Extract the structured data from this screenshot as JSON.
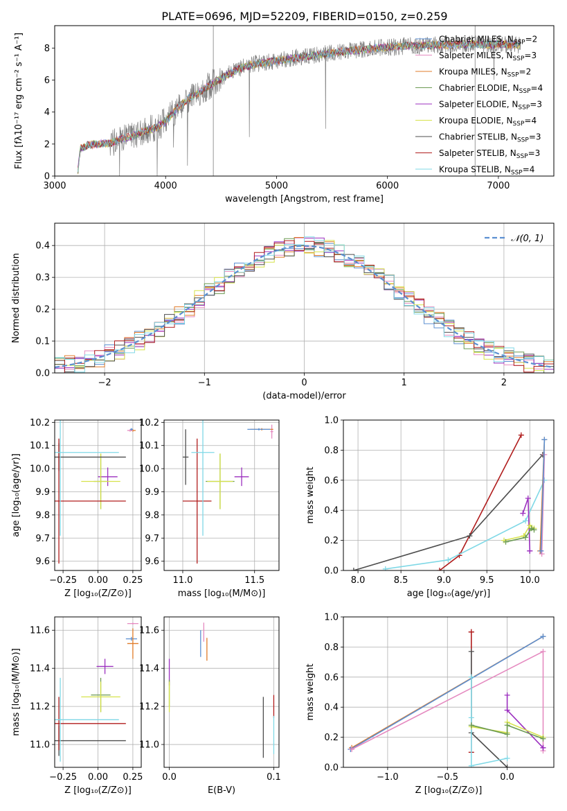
{
  "figure": {
    "title": "PLATE=0696, MJD=52209, FIBERID=0150, z=0.259"
  },
  "colors": {
    "chabrier_miles": "#5b8fd1",
    "salpeter_miles": "#e58ac0",
    "kroupa_miles": "#e07b28",
    "chabrier_elodie": "#6b9a52",
    "salpeter_elodie": "#9b2fbf",
    "kroupa_elodie": "#d6e24a",
    "chabrier_stelib": "#4d4d4d",
    "salpeter_stelib": "#b01c1c",
    "kroupa_stelib": "#7fd8e6",
    "data_spectrum": "#7f7f7f",
    "normal_curve": "#5b8fd1"
  },
  "chart_data": [
    {
      "id": "spectrum",
      "type": "line",
      "xlabel": "wavelength [Angstrom, rest frame]",
      "ylabel": "Flux [fλ10⁻¹⁷ erg cm⁻² s⁻¹ A⁻¹]",
      "xlim": [
        3000,
        7500
      ],
      "ylim": [
        0,
        9.4
      ],
      "xticks": [
        "3000",
        "4000",
        "5000",
        "6000",
        "7000"
      ],
      "yticks": [
        "0",
        "2",
        "4",
        "6",
        "8"
      ],
      "legend_position": "right",
      "legend": [
        "Chabrier MILES, N_SSP=2",
        "Salpeter MILES, N_SSP=3",
        "Kroupa MILES, N_SSP=2",
        "Chabrier ELODIE, N_SSP=4",
        "Salpeter ELODIE, N_SSP=3",
        "Kroupa ELODIE, N_SSP=4",
        "Chabrier STELIB, N_SSP=3",
        "Salpeter STELIB, N_SSP=3",
        "Kroupa STELIB, N_SSP=4"
      ],
      "legend_sub": "SSP",
      "model_curve": {
        "x": [
          3210,
          3230,
          3300,
          3400,
          3500,
          3600,
          3700,
          3800,
          3900,
          4000,
          4100,
          4200,
          4300,
          4400,
          4500,
          4600,
          4700,
          4800,
          4900,
          5000,
          5100,
          5200,
          5300,
          5400,
          5500,
          5600,
          5700,
          5800,
          5900,
          6000,
          6100,
          6200,
          6300,
          6400,
          6500,
          6600,
          6700,
          6800,
          6900,
          7000,
          7100,
          7200
        ],
        "y": [
          0.3,
          1.7,
          1.95,
          2.0,
          2.05,
          2.3,
          2.5,
          2.8,
          3.0,
          3.4,
          4.2,
          4.8,
          5.2,
          5.7,
          6.1,
          6.5,
          6.8,
          7.0,
          7.1,
          7.2,
          7.3,
          7.4,
          7.5,
          7.6,
          7.7,
          7.8,
          7.85,
          7.9,
          8.0,
          8.05,
          8.1,
          8.15,
          8.15,
          8.2,
          8.2,
          8.2,
          8.25,
          8.25,
          8.2,
          8.25,
          8.2,
          8.2
        ]
      }
    },
    {
      "id": "residuals",
      "type": "histogram",
      "xlabel": "(data-model)/error",
      "ylabel": "Normed distribution",
      "xlim": [
        -2.5,
        2.5
      ],
      "ylim": [
        0,
        0.47
      ],
      "xticks": [
        "−2",
        "−1",
        "0",
        "1",
        "2"
      ],
      "yticks": [
        "0.0",
        "0.1",
        "0.2",
        "0.3",
        "0.4"
      ],
      "grid": true,
      "legend_position": "top-right",
      "legend": [
        "𝒩(0, 1)"
      ],
      "bin_width": 0.1,
      "normal": {
        "mu": 0,
        "sigma": 1
      }
    },
    {
      "id": "age_vs_z",
      "type": "scatter",
      "xlabel": "Z [log₁₀(Z/Z⊙)]",
      "ylabel": "age  [log₁₀(age/yr)]",
      "xlim": [
        -0.31,
        0.31
      ],
      "ylim": [
        9.56,
        10.21
      ],
      "xticks": [
        "−0.25",
        "0.00",
        "0.25"
      ],
      "yticks": [
        "9.6",
        "9.7",
        "9.8",
        "9.9",
        "10.0",
        "10.1",
        "10.2"
      ],
      "grid": true,
      "points": [
        {
          "x": 0.25,
          "y": 10.165,
          "xe": 0.02,
          "ye": 0.005,
          "c": "kroupa_miles"
        },
        {
          "x": 0.23,
          "y": 10.165,
          "xe": 0.02,
          "ye": 0.005,
          "c": "salpeter_miles"
        },
        {
          "x": 0.24,
          "y": 10.17,
          "xe": 0.01,
          "ye": 0.005,
          "c": "chabrier_miles"
        },
        {
          "x": 0.07,
          "y": 9.965,
          "xe": 0.07,
          "ye": 0.04,
          "c": "salpeter_elodie"
        },
        {
          "x": 0.02,
          "y": 9.945,
          "xe": 0.05,
          "ye": 0.12,
          "c": "chabrier_elodie"
        },
        {
          "x": 0.02,
          "y": 9.945,
          "xe": 0.14,
          "ye": 0.12,
          "c": "kroupa_elodie"
        },
        {
          "x": -0.28,
          "y": 10.05,
          "xe": 0.48,
          "ye": 0.06,
          "c": "chabrier_stelib"
        },
        {
          "x": -0.28,
          "y": 9.86,
          "xe": 0.48,
          "ye": 0.27,
          "c": "salpeter_stelib"
        },
        {
          "x": -0.27,
          "y": 10.07,
          "xe": 0.42,
          "ye": 0.36,
          "c": "kroupa_stelib"
        }
      ]
    },
    {
      "id": "age_vs_mass",
      "type": "scatter",
      "xlabel": "mass [log₁₀(M/M⊙)]",
      "ylabel": "",
      "xlim": [
        10.87,
        11.67
      ],
      "ylim": [
        9.56,
        10.21
      ],
      "xticks": [
        "11.0",
        "11.5"
      ],
      "yticks": [
        "9.6",
        "9.7",
        "9.8",
        "9.9",
        "10.0",
        "10.1",
        "10.2"
      ],
      "grid": true,
      "points": [
        {
          "x": 11.62,
          "y": 10.16,
          "xe": 0.01,
          "ye": 0.03,
          "c": "salpeter_miles"
        },
        {
          "x": 11.55,
          "y": 10.17,
          "xe": 0.08,
          "ye": 0.005,
          "c": "kroupa_miles"
        },
        {
          "x": 11.53,
          "y": 10.17,
          "xe": 0.08,
          "ye": 0.005,
          "c": "chabrier_miles"
        },
        {
          "x": 11.41,
          "y": 9.965,
          "xe": 0.05,
          "ye": 0.04,
          "c": "salpeter_elodie"
        },
        {
          "x": 11.26,
          "y": 9.945,
          "xe": 0.1,
          "ye": 0.12,
          "c": "chabrier_elodie"
        },
        {
          "x": 11.26,
          "y": 9.945,
          "xe": 0.09,
          "ye": 0.12,
          "c": "kroupa_elodie"
        },
        {
          "x": 11.02,
          "y": 10.05,
          "xe": 0.02,
          "ye": 0.12,
          "c": "chabrier_stelib"
        },
        {
          "x": 11.1,
          "y": 9.86,
          "xe": 0.1,
          "ye": 0.27,
          "c": "salpeter_stelib"
        },
        {
          "x": 11.14,
          "y": 10.07,
          "xe": 0.08,
          "ye": 0.36,
          "c": "kroupa_stelib"
        }
      ]
    },
    {
      "id": "weight_vs_age",
      "type": "line",
      "xlabel": "age  [log₁₀(age/yr)]",
      "ylabel": "mass weight",
      "xlim": [
        7.83,
        10.28
      ],
      "ylim": [
        0,
        1.0
      ],
      "xticks": [
        "8.0",
        "8.5",
        "9.0",
        "9.5",
        "10.0"
      ],
      "yticks": [
        "0.0",
        "0.2",
        "0.4",
        "0.6",
        "0.8",
        "1.0"
      ],
      "grid": true,
      "series": [
        {
          "c": "salpeter_stelib",
          "x": [
            8.95,
            9.18,
            9.9
          ],
          "y": [
            0.0,
            0.1,
            0.9
          ]
        },
        {
          "c": "chabrier_stelib",
          "x": [
            7.95,
            9.3,
            10.15
          ],
          "y": [
            0.0,
            0.23,
            0.77
          ]
        },
        {
          "c": "kroupa_stelib",
          "x": [
            8.32,
            9.05,
            9.95,
            10.17
          ],
          "y": [
            0.01,
            0.07,
            0.33,
            0.6
          ]
        },
        {
          "c": "salpeter_elodie",
          "x": [
            9.92,
            9.98,
            10.0,
            10.0
          ],
          "y": [
            0.38,
            0.48,
            0.13,
            0.13
          ]
        },
        {
          "c": "kroupa_elodie",
          "x": [
            9.7,
            9.93,
            10.0,
            10.05
          ],
          "y": [
            0.2,
            0.23,
            0.3,
            0.28
          ]
        },
        {
          "c": "chabrier_elodie",
          "x": [
            9.72,
            9.95,
            10.02,
            10.05
          ],
          "y": [
            0.19,
            0.22,
            0.28,
            0.27
          ]
        },
        {
          "c": "salpeter_miles",
          "x": [
            10.14,
            10.17
          ],
          "y": [
            0.11,
            0.77
          ]
        },
        {
          "c": "kroupa_miles",
          "x": [
            10.12,
            10.17
          ],
          "y": [
            0.13,
            0.87
          ]
        },
        {
          "c": "chabrier_miles",
          "x": [
            10.13,
            10.17
          ],
          "y": [
            0.13,
            0.87
          ]
        }
      ]
    },
    {
      "id": "mass_vs_z",
      "type": "scatter",
      "xlabel": "Z [log₁₀(Z/Z⊙)]",
      "ylabel": "mass [log₁₀(M/M⊙)]",
      "xlim": [
        -0.31,
        0.31
      ],
      "ylim": [
        10.88,
        11.67
      ],
      "xticks": [
        "−0.25",
        "0.00",
        "0.25"
      ],
      "yticks": [
        "11.0",
        "11.2",
        "11.4",
        "11.6"
      ],
      "grid": true,
      "points": [
        {
          "x": 0.25,
          "y": 11.635,
          "xe": 0.04,
          "ye": 0.005,
          "c": "salpeter_miles"
        },
        {
          "x": 0.24,
          "y": 11.555,
          "xe": 0.04,
          "ye": 0.01,
          "c": "chabrier_miles"
        },
        {
          "x": 0.25,
          "y": 11.53,
          "xe": 0.04,
          "ye": 0.08,
          "c": "kroupa_miles"
        },
        {
          "x": 0.05,
          "y": 11.41,
          "xe": 0.06,
          "ye": 0.04,
          "c": "salpeter_elodie"
        },
        {
          "x": 0.02,
          "y": 11.26,
          "xe": 0.07,
          "ye": 0.09,
          "c": "chabrier_elodie"
        },
        {
          "x": 0.02,
          "y": 11.25,
          "xe": 0.14,
          "ye": 0.08,
          "c": "kroupa_elodie"
        },
        {
          "x": -0.28,
          "y": 11.02,
          "xe": 0.48,
          "ye": 0.08,
          "c": "chabrier_stelib"
        },
        {
          "x": -0.28,
          "y": 11.11,
          "xe": 0.48,
          "ye": 0.14,
          "c": "salpeter_stelib"
        },
        {
          "x": -0.27,
          "y": 11.13,
          "xe": 0.42,
          "ye": 0.22,
          "c": "kroupa_stelib"
        }
      ]
    },
    {
      "id": "mass_vs_ebv",
      "type": "scatter",
      "xlabel": "E(B-V)",
      "ylabel": "",
      "xlim": [
        -0.005,
        0.105
      ],
      "ylim": [
        10.88,
        11.67
      ],
      "xticks": [
        "0.0",
        "0.1"
      ],
      "yticks": [
        "11.0",
        "11.2",
        "11.4",
        "11.6"
      ],
      "grid": true,
      "points": [
        {
          "x": 0.033,
          "y": 11.59,
          "xe": 0.0,
          "ye": 0.05,
          "c": "salpeter_miles"
        },
        {
          "x": 0.03,
          "y": 11.53,
          "xe": 0.0,
          "ye": 0.07,
          "c": "chabrier_miles"
        },
        {
          "x": 0.036,
          "y": 11.5,
          "xe": 0.0,
          "ye": 0.06,
          "c": "kroupa_miles"
        },
        {
          "x": 0.0,
          "y": 11.38,
          "xe": 0.0,
          "ye": 0.07,
          "c": "salpeter_elodie"
        },
        {
          "x": 0.0,
          "y": 11.27,
          "xe": 0.0,
          "ye": 0.07,
          "c": "chabrier_elodie"
        },
        {
          "x": 0.0,
          "y": 11.25,
          "xe": 0.0,
          "ye": 0.08,
          "c": "kroupa_elodie"
        },
        {
          "x": 0.09,
          "y": 11.09,
          "xe": 0.0,
          "ye": 0.16,
          "c": "chabrier_stelib"
        },
        {
          "x": 0.1,
          "y": 11.2,
          "xe": 0.0,
          "ye": 0.06,
          "c": "salpeter_stelib"
        },
        {
          "x": 0.1,
          "y": 11.05,
          "xe": 0.0,
          "ye": 0.1,
          "c": "kroupa_stelib"
        }
      ]
    },
    {
      "id": "weight_vs_z",
      "type": "line",
      "xlabel": "Z [log₁₀(Z/Z⊙)]",
      "ylabel": "mass weight",
      "xlim": [
        -1.37,
        0.39
      ],
      "ylim": [
        0,
        1.0
      ],
      "xticks": [
        "−1.0",
        "−0.5",
        "0.0"
      ],
      "yticks": [
        "0.0",
        "0.2",
        "0.4",
        "0.6",
        "0.8",
        "1.0"
      ],
      "grid": true,
      "series": [
        {
          "c": "kroupa_miles",
          "x": [
            -1.3,
            0.3
          ],
          "y": [
            0.13,
            0.87
          ]
        },
        {
          "c": "chabrier_miles",
          "x": [
            -1.31,
            0.3
          ],
          "y": [
            0.12,
            0.87
          ]
        },
        {
          "c": "salpeter_miles",
          "x": [
            -1.3,
            0.3,
            0.3
          ],
          "y": [
            0.12,
            0.77,
            0.11
          ]
        },
        {
          "c": "salpeter_stelib",
          "x": [
            -0.3,
            -0.3,
            -0.3
          ],
          "y": [
            0.9,
            0.1,
            0.9
          ]
        },
        {
          "c": "chabrier_stelib",
          "x": [
            -0.3,
            -0.3,
            0.0
          ],
          "y": [
            0.77,
            0.23,
            0.0
          ]
        },
        {
          "c": "kroupa_stelib",
          "x": [
            -0.3,
            -0.3,
            -0.3,
            0.0
          ],
          "y": [
            0.6,
            0.33,
            0.01,
            0.06
          ]
        },
        {
          "c": "salpeter_elodie",
          "x": [
            0.0,
            0.0,
            0.3,
            0.3
          ],
          "y": [
            0.48,
            0.38,
            0.13,
            0.13
          ]
        },
        {
          "c": "kroupa_elodie",
          "x": [
            -0.3,
            0.0,
            0.0,
            0.3
          ],
          "y": [
            0.27,
            0.23,
            0.3,
            0.2
          ]
        },
        {
          "c": "chabrier_elodie",
          "x": [
            -0.3,
            0.0,
            0.0,
            0.3
          ],
          "y": [
            0.28,
            0.22,
            0.28,
            0.19
          ]
        }
      ]
    }
  ]
}
